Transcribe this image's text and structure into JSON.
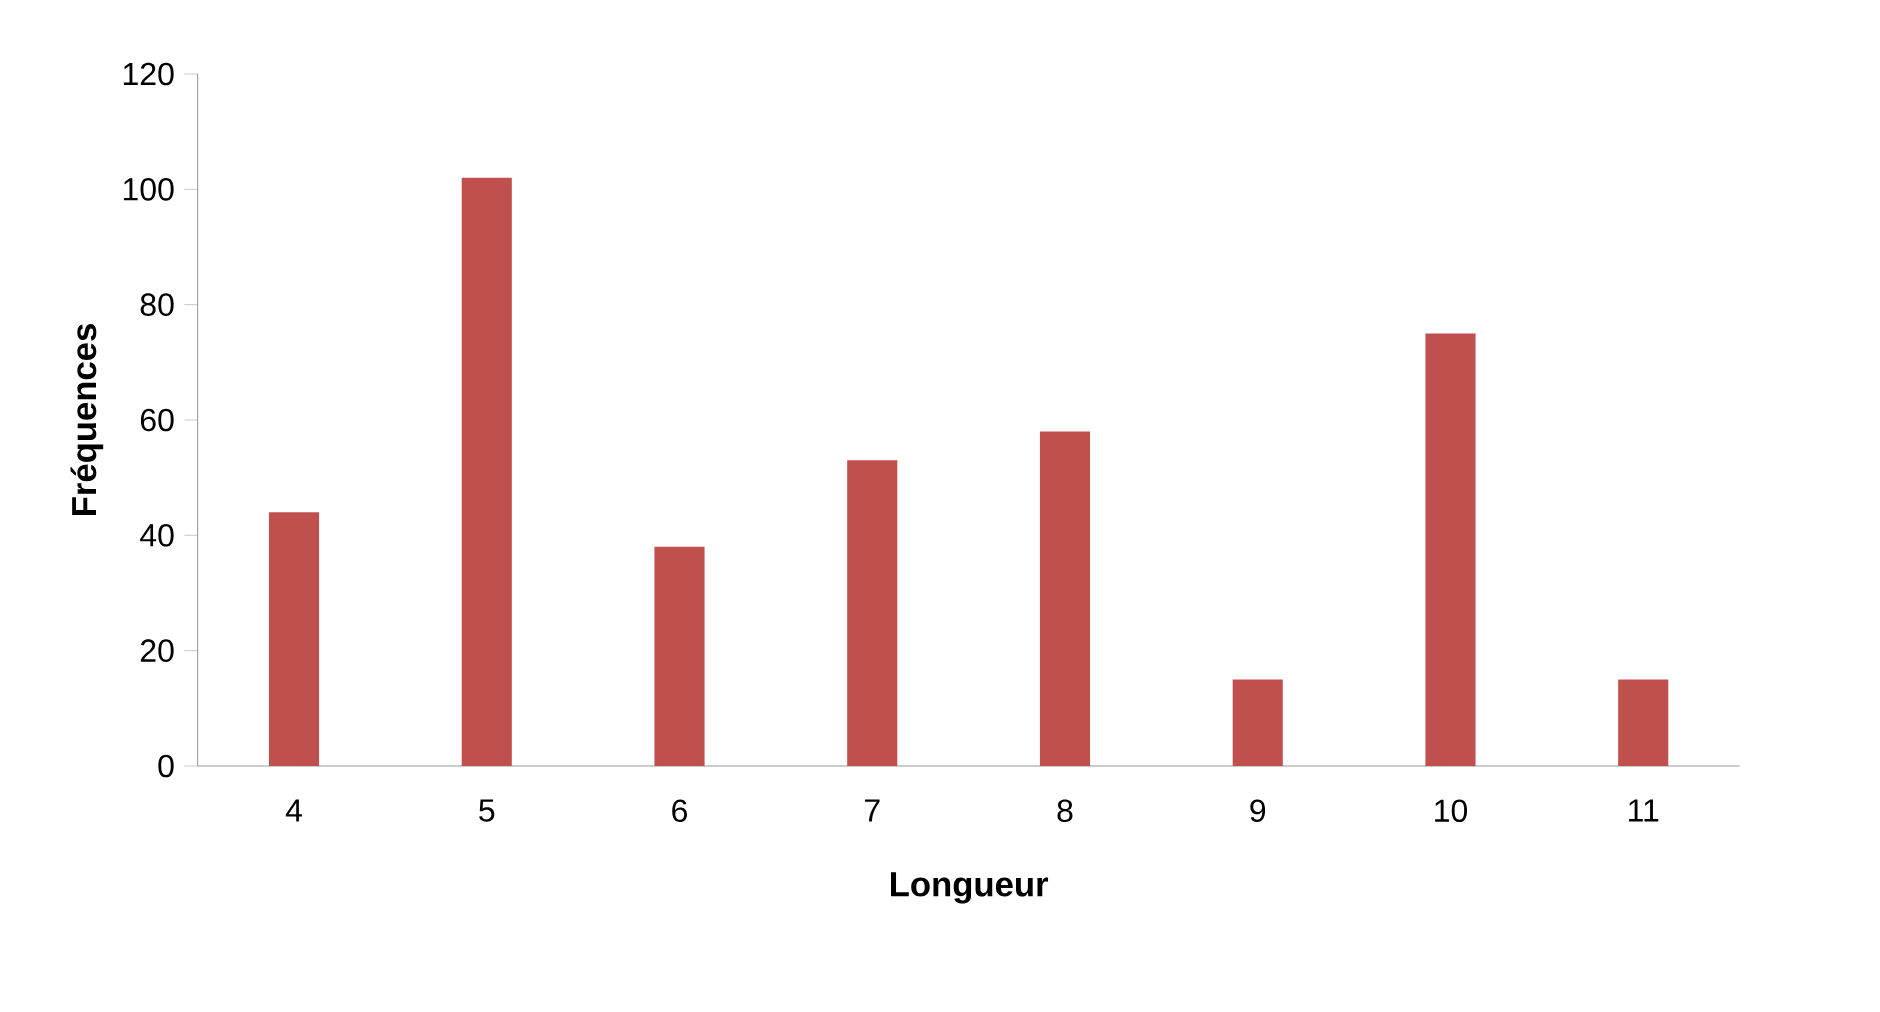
{
  "chart_data": {
    "type": "bar",
    "xlabel": "Longueur",
    "ylabel": "Fréquences",
    "categories": [
      "4",
      "5",
      "6",
      "7",
      "8",
      "9",
      "10",
      "11"
    ],
    "values": [
      44,
      102,
      38,
      53,
      58,
      15,
      75,
      15
    ],
    "color": "#c0504d",
    "ylim": [
      0,
      120
    ],
    "yticks": [
      0,
      20,
      40,
      60,
      80,
      100,
      120
    ]
  }
}
